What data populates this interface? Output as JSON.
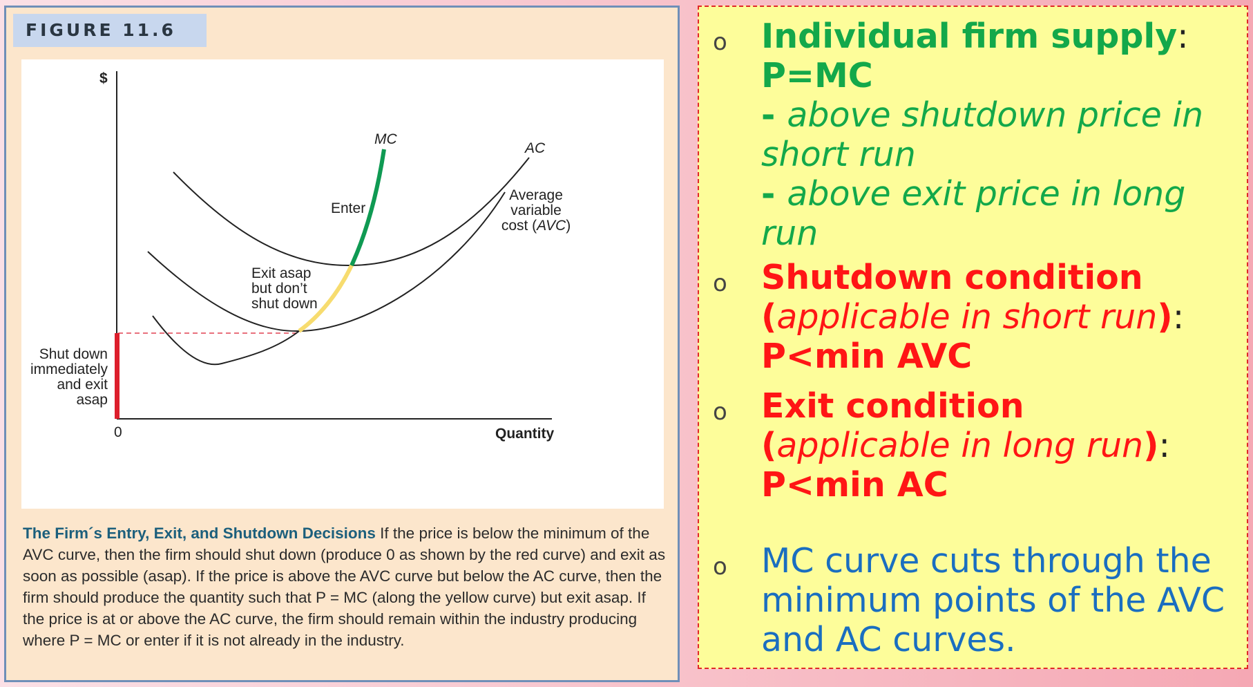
{
  "figure": {
    "label": "FIGURE 11.6",
    "caption": {
      "title": "The Firm´s Entry, Exit, and Shutdown Decisions",
      "body": " If the price is below the minimum of the AVC curve, then the firm should shut down (produce 0 as shown by the red curve) and exit as soon as possible (asap). If the price is above the AVC curve but below the AC curve, then the firm should produce the quantity such that P = MC (along the yellow curve) but exit asap. If the price is at or above the AC curve, the firm should remain within the industry producing where P = MC or enter if it is not already in the industry."
    }
  },
  "chart_data": {
    "type": "line",
    "title": "",
    "xlabel": "Quantity",
    "ylabel": "$",
    "x_tick_labels": [
      "0"
    ],
    "grid": false,
    "series": [
      {
        "name": "MC",
        "color": "#222222"
      },
      {
        "name": "AC",
        "color": "#222222"
      },
      {
        "name": "Average variable cost (AVC)",
        "color": "#222222"
      }
    ],
    "highlights": [
      {
        "name": "Shut down immediately and exit asap",
        "color": "#dd1f2c"
      },
      {
        "name": "Exit asap but don’t shut down",
        "color": "#f5dc6c"
      },
      {
        "name": "Enter",
        "color": "#0f9a53"
      }
    ],
    "labels": {
      "y_axis": "$",
      "x_axis": "Quantity",
      "origin": "0",
      "mc": "MC",
      "ac": "AC",
      "avc": [
        "Average",
        "variable",
        "cost (",
        "AVC",
        ")"
      ],
      "enter": "Enter",
      "exit_but_dont": [
        "Exit asap",
        "but don’t",
        "shut down"
      ],
      "shutdown": [
        "Shut down",
        "immediately",
        "and exit",
        "asap"
      ]
    }
  },
  "notes": {
    "bullet": "o",
    "item1": {
      "title": "Individual firm supply",
      "colon": ":",
      "rule": "P=MC",
      "sub1_dash": "- ",
      "sub1": "above shutdown price in short run",
      "sub2_dash": "- ",
      "sub2": "above exit price in long run"
    },
    "item2": {
      "title": "Shutdown condition",
      "paren_open": "(",
      "paren_text": "applicable in short run",
      "paren_close": ")",
      "colon": ":",
      "rule": "P<min AVC"
    },
    "item3": {
      "title": "Exit condition",
      "paren_open": "(",
      "paren_text": "applicable in long run",
      "paren_close": ")",
      "colon": ":",
      "rule": "P<min AC"
    },
    "item4": {
      "text": "MC curve cuts through the minimum points of the AVC and AC curves."
    }
  }
}
